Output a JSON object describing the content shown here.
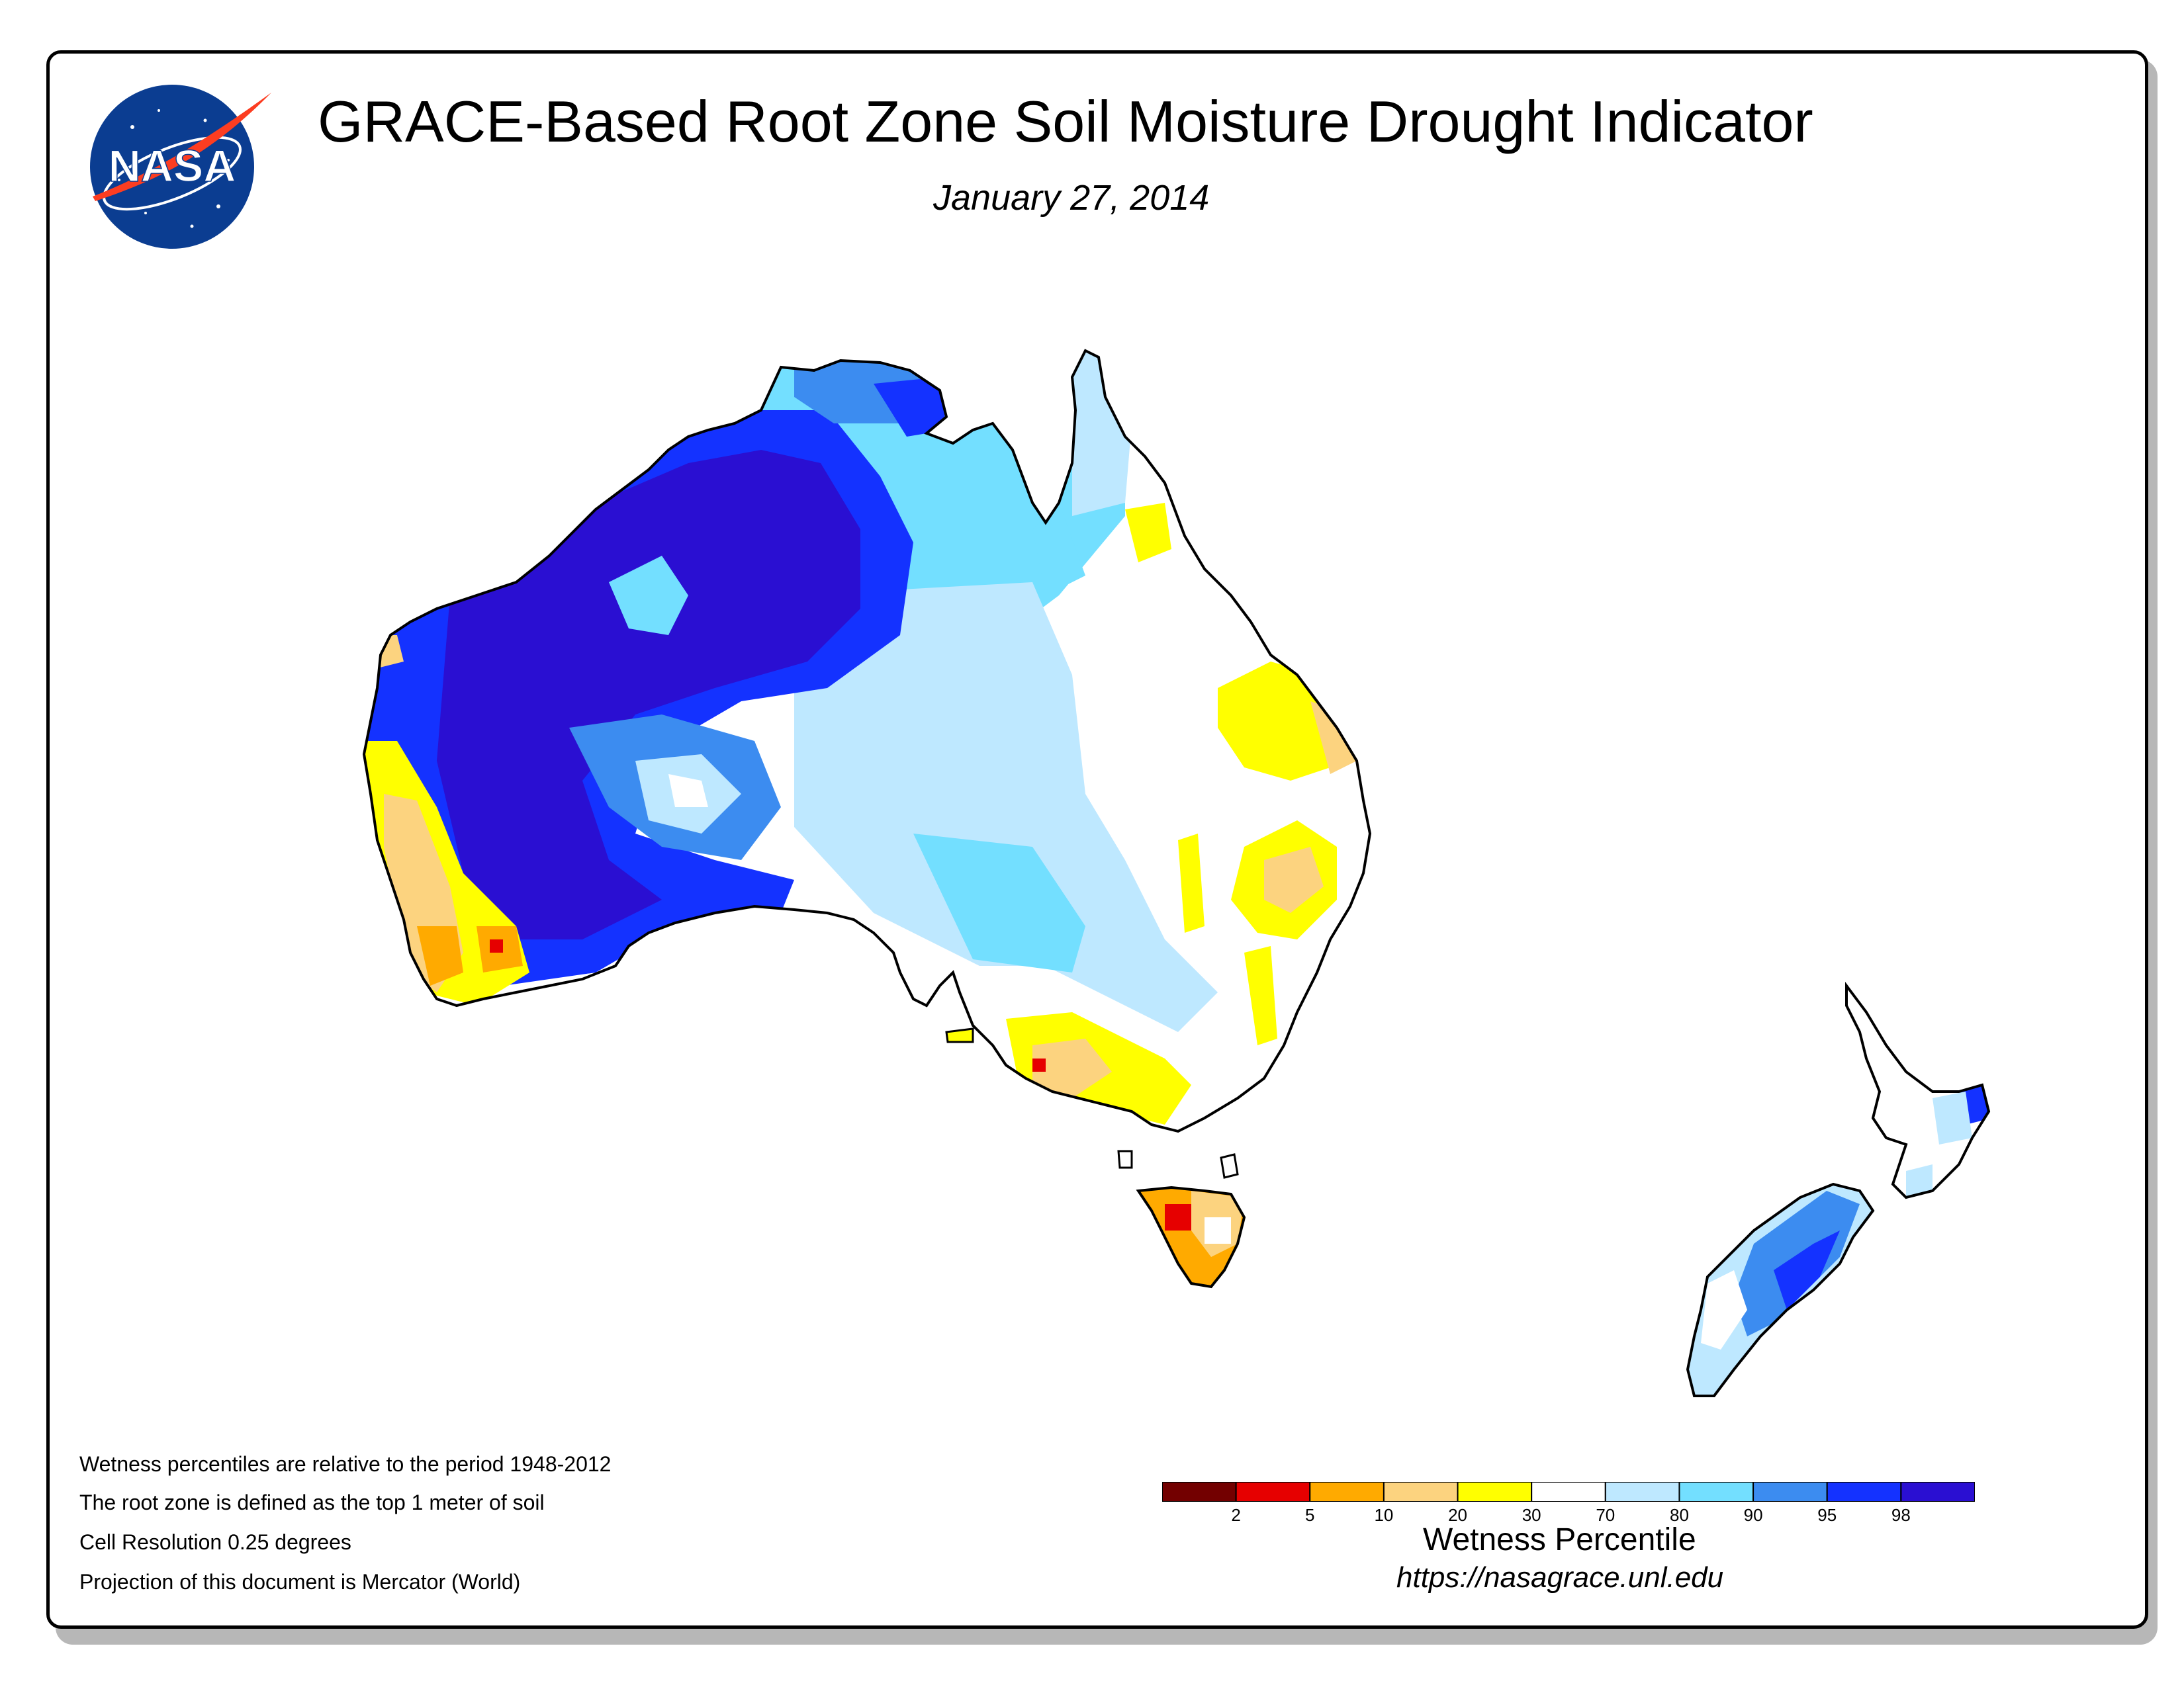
{
  "title": "GRACE-Based Root Zone Soil Moisture Drought Indicator",
  "date": "January 27, 2014",
  "logo": {
    "text": "NASA",
    "icon": "nasa-meatball-icon"
  },
  "notes": [
    "Wetness percentiles are relative to the period 1948-2012",
    "The root zone is defined as the top 1 meter of soil",
    "Cell Resolution 0.25 degrees",
    "Projection of this document is Mercator (World)"
  ],
  "legend": {
    "title": "Wetness Percentile",
    "ticks": [
      "2",
      "5",
      "10",
      "20",
      "30",
      "70",
      "80",
      "90",
      "95",
      "98"
    ],
    "colors": [
      "#730000",
      "#e60000",
      "#ffaa00",
      "#fcd37f",
      "#ffff00",
      "#ffffff",
      "#bee8ff",
      "#73dfff",
      "#3c8cf0",
      "#1432ff",
      "#2a0fd2"
    ]
  },
  "url": "https://nasagrace.unl.edu",
  "map_colors": {
    "land_outline": "#000000",
    "very_wet": "#2a0fd2",
    "wet": "#1432ff",
    "moderately_wet": "#3c8cf0",
    "slightly_wet": "#73dfff",
    "near_normal_wet": "#bee8ff",
    "normal": "#ffffff",
    "slightly_dry": "#ffff00",
    "moderately_dry": "#fcd37f",
    "dry": "#ffaa00",
    "very_dry": "#e60000"
  }
}
